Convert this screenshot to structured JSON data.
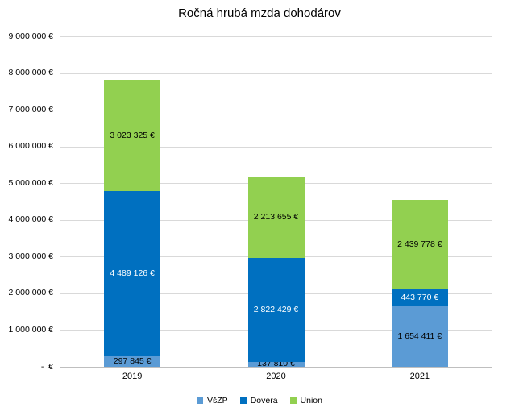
{
  "chart_data": {
    "type": "bar",
    "stacked": true,
    "title": "Ročná hrubá mzda dohodárov",
    "xlabel": "",
    "ylabel": "",
    "categories": [
      "2019",
      "2020",
      "2021"
    ],
    "series": [
      {
        "name": "VšZP",
        "key": "vszp",
        "color": "#5B9BD5",
        "label_color": "#000000",
        "values": [
          297845,
          137810,
          1654411
        ],
        "labels": [
          "297 845 €",
          "137 810 €",
          "1 654 411 €"
        ]
      },
      {
        "name": "Dovera",
        "key": "dovera",
        "color": "#0070C0",
        "label_color": "#FFFFFF",
        "values": [
          4489126,
          2822429,
          443770
        ],
        "labels": [
          "4 489 126 €",
          "2 822 429 €",
          "443 770 €"
        ]
      },
      {
        "name": "Union",
        "key": "union",
        "color": "#92D050",
        "label_color": "#000000",
        "values": [
          3023325,
          2213655,
          2439778
        ],
        "labels": [
          "3 023 325 €",
          "2 213 655 €",
          "2 439 778 €"
        ]
      }
    ],
    "ylim": [
      0,
      9000000
    ],
    "ytick_interval": 1000000,
    "yticks_top_to_bottom": [
      "9 000 000 €",
      "8 000 000 €",
      "7 000 000 €",
      "6 000 000 €",
      "5 000 000 €",
      "4 000 000 €",
      "3 000 000 €",
      "2 000 000 €",
      "1 000 000 €",
      "-  €"
    ],
    "grid": true,
    "gridline_color": "#D9D9D9",
    "legend_position": "bottom"
  }
}
